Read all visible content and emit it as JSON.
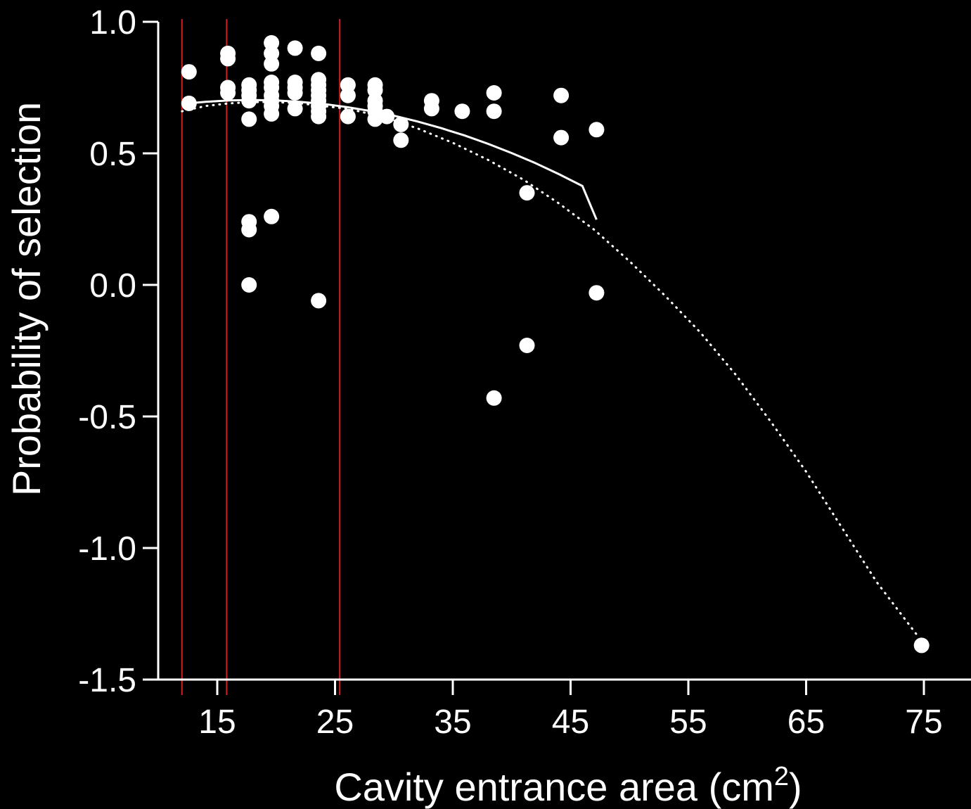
{
  "chart_data": {
    "type": "scatter",
    "title": "",
    "xlabel": "Cavity entrance area (cm",
    "xlabel_superscript": "2",
    "xlabel_suffix": ")",
    "ylabel": "Probability of selection",
    "xlim": [
      10,
      78
    ],
    "ylim": [
      -1.5,
      1.0
    ],
    "x_ticks": [
      15,
      25,
      35,
      45,
      55,
      65,
      75
    ],
    "x_tick_labels": [
      "15",
      "25",
      "35",
      "45",
      "55",
      "65",
      "75"
    ],
    "y_ticks": [
      1.0,
      0.5,
      0.0,
      -0.5,
      -1.0,
      -1.5
    ],
    "y_tick_labels": [
      "1.0",
      "0.5",
      "0.0",
      "-0.5",
      "-1.0",
      "-1.5"
    ],
    "grid": false,
    "colors": {
      "background": "#000000",
      "foreground": "#ffffff",
      "reference_lines": "#d42020"
    },
    "reference_lines_x": [
      12,
      15.8,
      25.4
    ],
    "series": [
      {
        "type": "scatter",
        "points": [
          [
            12.6,
            0.81
          ],
          [
            12.6,
            0.69
          ],
          [
            15.9,
            0.88
          ],
          [
            15.9,
            0.86
          ],
          [
            15.9,
            0.75
          ],
          [
            15.9,
            0.73
          ],
          [
            17.7,
            0.76
          ],
          [
            17.7,
            0.74
          ],
          [
            17.7,
            0.72
          ],
          [
            17.7,
            0.7
          ],
          [
            17.7,
            0.63
          ],
          [
            17.7,
            0.24
          ],
          [
            17.7,
            0.21
          ],
          [
            17.7,
            0.0
          ],
          [
            19.6,
            0.92
          ],
          [
            19.6,
            0.88
          ],
          [
            19.6,
            0.84
          ],
          [
            19.6,
            0.77
          ],
          [
            19.6,
            0.75
          ],
          [
            19.6,
            0.72
          ],
          [
            19.6,
            0.7
          ],
          [
            19.6,
            0.68
          ],
          [
            19.6,
            0.65
          ],
          [
            19.6,
            0.26
          ],
          [
            21.6,
            0.9
          ],
          [
            21.6,
            0.77
          ],
          [
            21.6,
            0.75
          ],
          [
            21.6,
            0.73
          ],
          [
            21.6,
            0.67
          ],
          [
            23.6,
            0.88
          ],
          [
            23.6,
            0.78
          ],
          [
            23.6,
            0.76
          ],
          [
            23.6,
            0.74
          ],
          [
            23.6,
            0.72
          ],
          [
            23.6,
            0.7
          ],
          [
            23.6,
            0.68
          ],
          [
            23.6,
            0.66
          ],
          [
            23.6,
            0.64
          ],
          [
            23.6,
            -0.06
          ],
          [
            26.1,
            0.76
          ],
          [
            26.1,
            0.72
          ],
          [
            26.1,
            0.64
          ],
          [
            28.4,
            0.76
          ],
          [
            28.4,
            0.74
          ],
          [
            28.4,
            0.7
          ],
          [
            28.4,
            0.68
          ],
          [
            28.4,
            0.66
          ],
          [
            28.4,
            0.63
          ],
          [
            29.4,
            0.64
          ],
          [
            30.6,
            0.61
          ],
          [
            30.6,
            0.55
          ],
          [
            33.2,
            0.7
          ],
          [
            33.2,
            0.67
          ],
          [
            35.8,
            0.66
          ],
          [
            38.5,
            0.73
          ],
          [
            38.5,
            0.66
          ],
          [
            38.5,
            -0.43
          ],
          [
            41.3,
            0.35
          ],
          [
            41.3,
            -0.23
          ],
          [
            44.2,
            0.72
          ],
          [
            44.2,
            0.56
          ],
          [
            47.2,
            0.59
          ],
          [
            47.2,
            -0.03
          ],
          [
            74.8,
            -1.37
          ]
        ]
      },
      {
        "type": "line",
        "style": "solid",
        "x": [
          12,
          14,
          16,
          18,
          20,
          22,
          24,
          26,
          28,
          30,
          32,
          34,
          36,
          38,
          40,
          42,
          44,
          46,
          47.2
        ],
        "y": [
          0.688,
          0.696,
          0.701,
          0.703,
          0.701,
          0.696,
          0.688,
          0.676,
          0.661,
          0.643,
          0.621,
          0.596,
          0.568,
          0.536,
          0.501,
          0.463,
          0.421,
          0.376,
          0.248
        ]
      },
      {
        "type": "line",
        "style": "dotted",
        "x": [
          12,
          14,
          16,
          18,
          20,
          22,
          24,
          26,
          28,
          30,
          32,
          35,
          38,
          41,
          44,
          47,
          50,
          53,
          56,
          59,
          62,
          65,
          68,
          71,
          74.4
        ],
        "y": [
          0.66,
          0.68,
          0.69,
          0.695,
          0.695,
          0.69,
          0.68,
          0.67,
          0.65,
          0.625,
          0.595,
          0.54,
          0.475,
          0.4,
          0.31,
          0.21,
          0.09,
          -0.04,
          -0.18,
          -0.34,
          -0.52,
          -0.71,
          -0.92,
          -1.13,
          -1.33
        ]
      }
    ]
  }
}
